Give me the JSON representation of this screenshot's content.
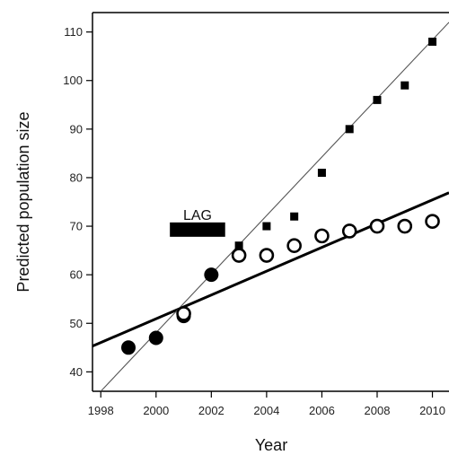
{
  "chart_data": {
    "type": "scatter",
    "title": "",
    "xlabel": "Year",
    "ylabel": "Predicted population size",
    "xlim": [
      1997.7,
      2010.6
    ],
    "ylim": [
      36,
      114
    ],
    "xticks": [
      1998,
      2000,
      2002,
      2004,
      2006,
      2008,
      2010
    ],
    "yticks": [
      40,
      50,
      60,
      70,
      80,
      90,
      100,
      110
    ],
    "xtick_labels": [
      "1998",
      "2000",
      "2002",
      "2004",
      "2006",
      "2008",
      "2010"
    ],
    "ytick_labels": [
      "40",
      "50",
      "60",
      "70",
      "80",
      "90",
      "100",
      "110"
    ],
    "grid": false,
    "legend": "none",
    "series": [
      {
        "marker": "filled-circle",
        "color": "#000000",
        "x": [
          1999,
          2000,
          2001,
          2002
        ],
        "y": [
          45,
          47,
          51.5,
          60
        ]
      },
      {
        "marker": "open-circle",
        "color": "#000000",
        "x": [
          2001,
          2003,
          2004,
          2005,
          2006,
          2007,
          2008,
          2009,
          2010
        ],
        "y": [
          52,
          64,
          64,
          66,
          68,
          69,
          70,
          70,
          71
        ]
      },
      {
        "marker": "filled-square",
        "color": "#000000",
        "x": [
          2003,
          2004,
          2005,
          2006,
          2007,
          2008,
          2009,
          2010
        ],
        "y": [
          66,
          70,
          72,
          81,
          90,
          96,
          99,
          108
        ]
      }
    ],
    "trend_lines": [
      {
        "style": "thick",
        "color": "#000000",
        "x": [
          1997.7,
          2010.6
        ],
        "y": [
          45.3,
          76.9
        ]
      },
      {
        "style": "thin",
        "color": "#555555",
        "x": [
          1998.0,
          2010.6
        ],
        "y": [
          36,
          112
        ]
      }
    ],
    "annotations": [
      {
        "text": "LAG",
        "x_start": 2000.5,
        "x_end": 2002.5,
        "y": 69.3
      }
    ]
  }
}
